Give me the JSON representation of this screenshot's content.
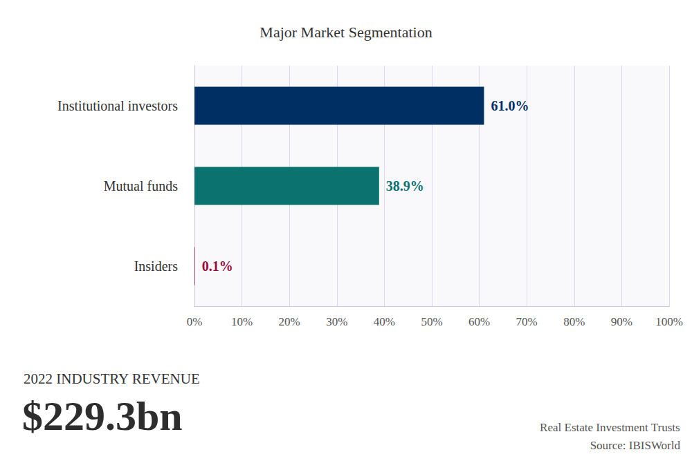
{
  "chart_data": {
    "type": "bar",
    "title": "Major Market Segmentation",
    "orientation": "horizontal",
    "categories": [
      "Institutional investors",
      "Mutual funds",
      "Insiders"
    ],
    "values": [
      61.0,
      38.9,
      0.1
    ],
    "value_labels": [
      "61.0%",
      "38.9%",
      "0.1%"
    ],
    "colors": [
      "#003063",
      "#0b7270",
      "#9b0a3d"
    ],
    "xlim": [
      0,
      100
    ],
    "xticks": [
      {
        "value": 0,
        "label": "0%"
      },
      {
        "value": 10,
        "label": "10%"
      },
      {
        "value": 20,
        "label": "20%"
      },
      {
        "value": 30,
        "label": "30%"
      },
      {
        "value": 40,
        "label": "40%"
      },
      {
        "value": 50,
        "label": "50%"
      },
      {
        "value": 60,
        "label": "60%"
      },
      {
        "value": 70,
        "label": "70%"
      },
      {
        "value": 80,
        "label": "80%"
      },
      {
        "value": 90,
        "label": "90%"
      },
      {
        "value": 100,
        "label": "100%"
      }
    ],
    "grid": true,
    "data_labels": true,
    "annotations": [
      "2022 INDUSTRY REVENUE",
      "$229.3bn",
      "Real Estate Investment Trusts",
      "Source: IBISWorld"
    ]
  }
}
